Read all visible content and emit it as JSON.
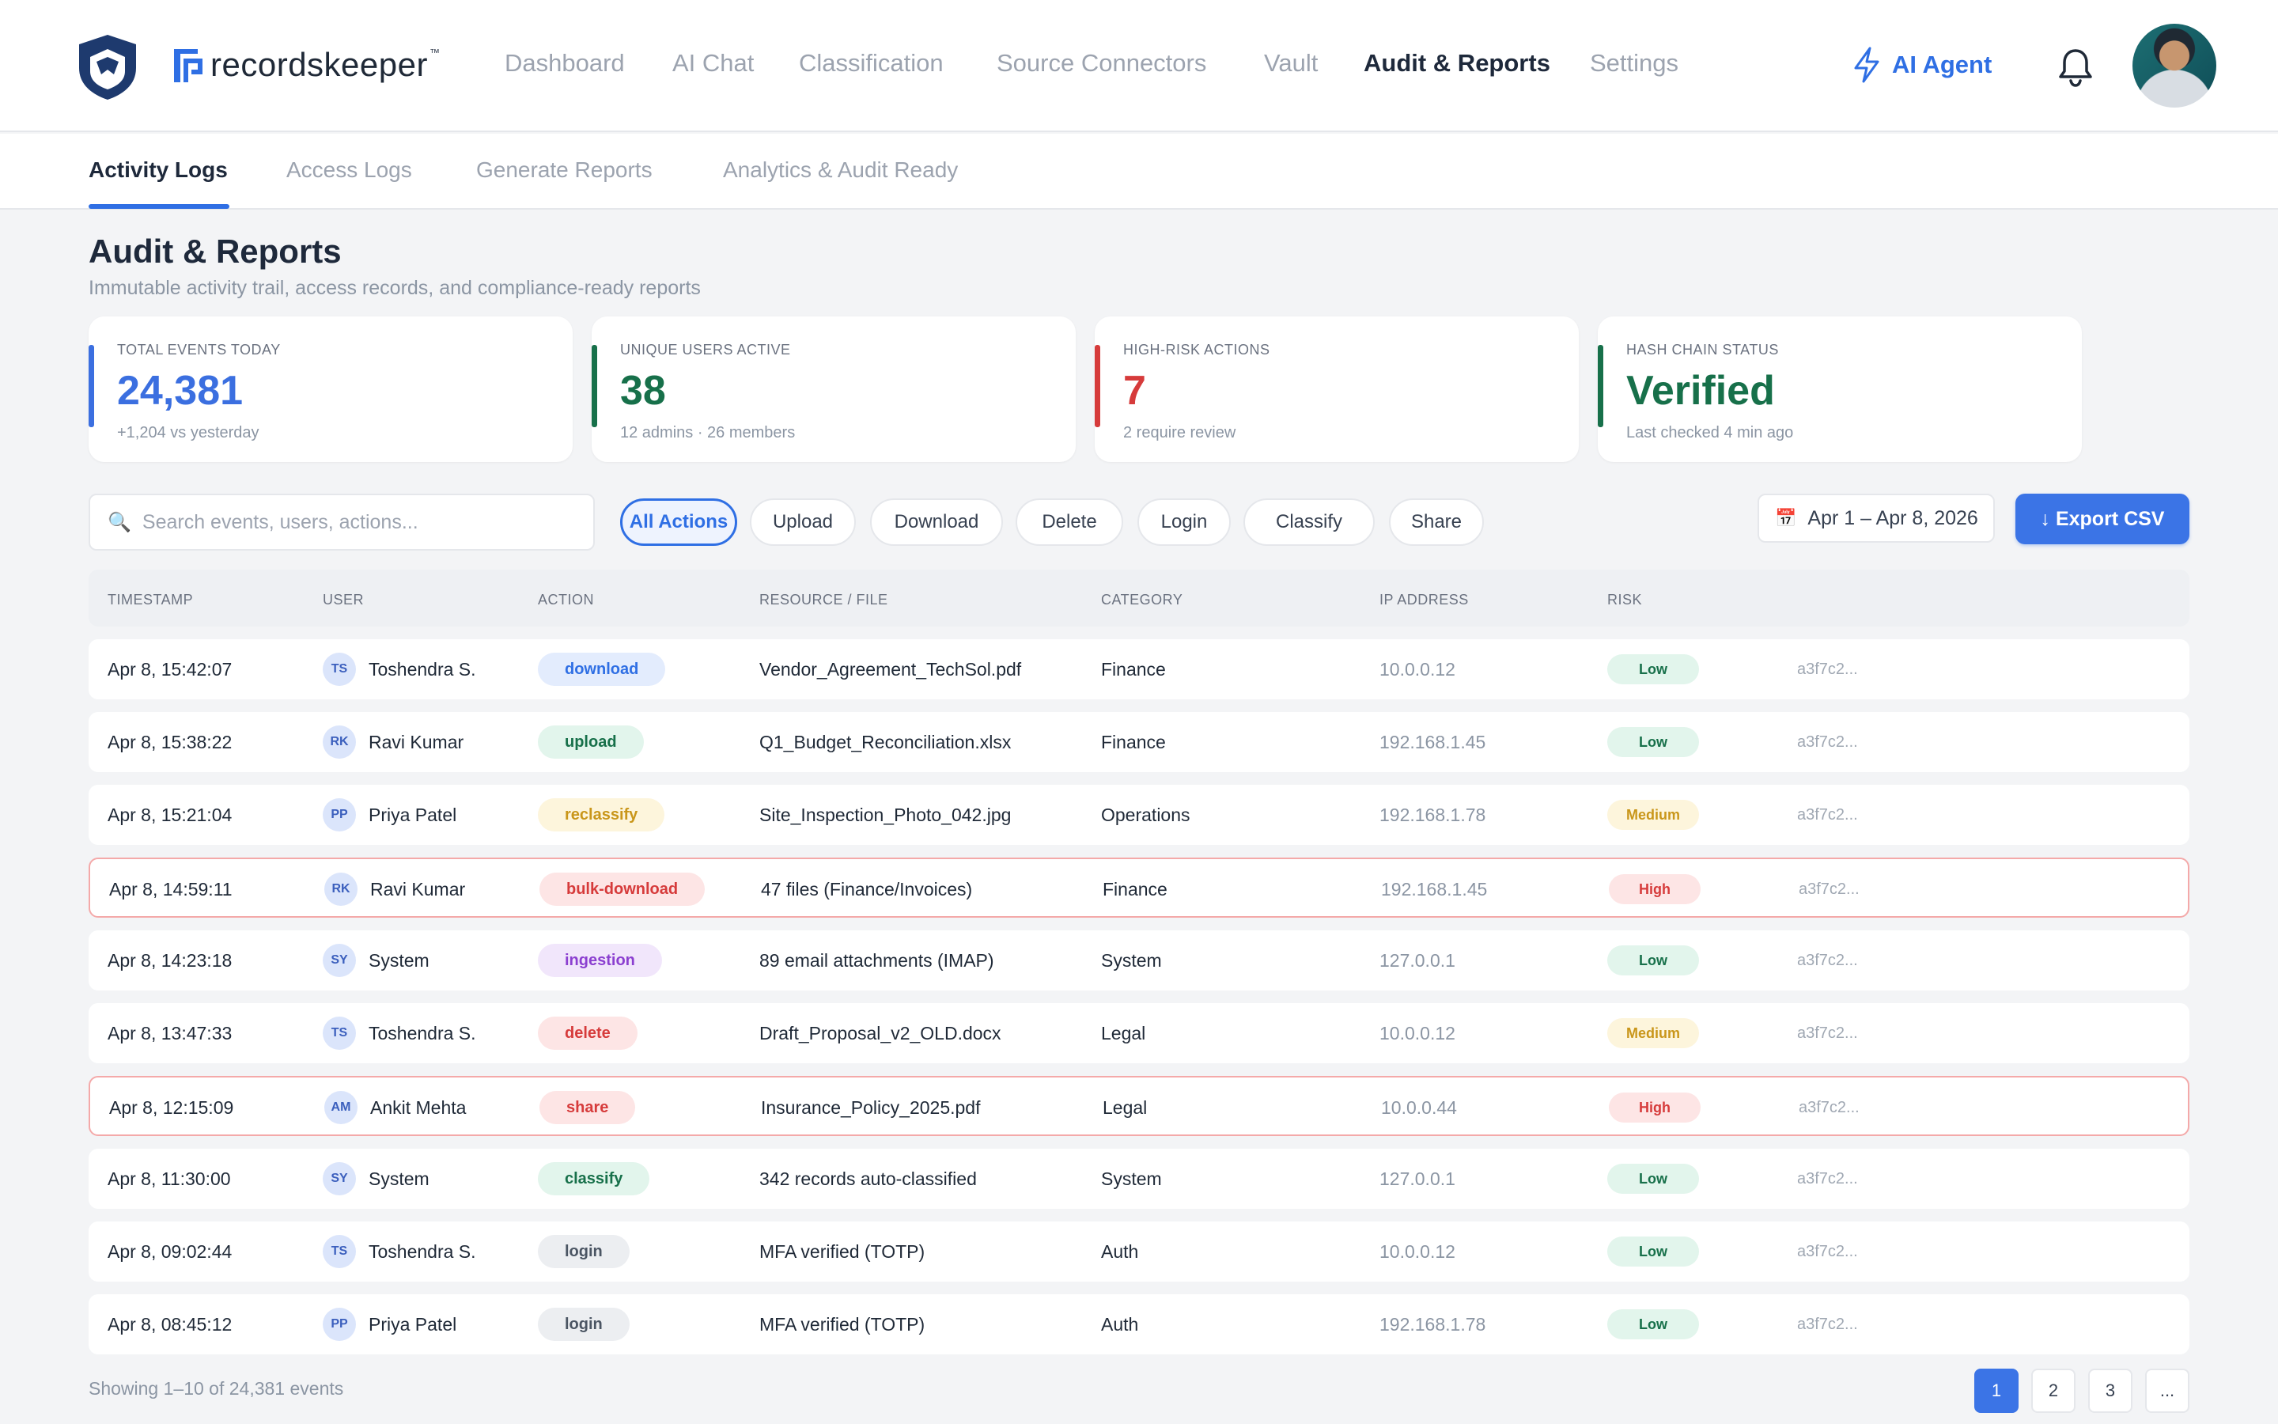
{
  "brand": {
    "name": "recordskeeper",
    "tm": "™"
  },
  "nav": {
    "items": [
      {
        "label": "Dashboard",
        "active": false
      },
      {
        "label": "AI Chat",
        "active": false
      },
      {
        "label": "Classification",
        "active": false
      },
      {
        "label": "Source Connectors",
        "active": false
      },
      {
        "label": "Vault",
        "active": false
      },
      {
        "label": "Audit & Reports",
        "active": true
      },
      {
        "label": "Settings",
        "active": false
      }
    ],
    "ai_agent": "AI Agent"
  },
  "subtabs": [
    "Activity Logs",
    "Access Logs",
    "Generate Reports",
    "Analytics & Audit Ready"
  ],
  "page": {
    "title": "Audit & Reports",
    "subtitle": "Immutable activity trail, access records, and compliance-ready reports"
  },
  "stats": [
    {
      "label": "Total Events Today",
      "value": "24,381",
      "note": "+1,204 vs yesterday",
      "color": "#3b6fe0"
    },
    {
      "label": "Unique Users Active",
      "value": "38",
      "note": "12 admins · 26 members",
      "color": "#17704a"
    },
    {
      "label": "High-Risk Actions",
      "value": "7",
      "note": "2 require review",
      "color": "#d63b3b"
    },
    {
      "label": "Hash Chain Status",
      "value": "Verified",
      "note": "Last checked 4 min ago",
      "color": "#17704a"
    }
  ],
  "toolbar": {
    "search_placeholder": "Search events, users, actions...",
    "search_icon": "🔍",
    "filters": [
      "All Actions",
      "Upload",
      "Download",
      "Delete",
      "Login",
      "Classify",
      "Share"
    ],
    "active_filter": "All Actions",
    "date_icon": "📅",
    "date_range": "Apr 1 – Apr 8, 2026",
    "export_label": "↓ Export CSV"
  },
  "table": {
    "columns": [
      "Timestamp",
      "User",
      "Action",
      "Resource / File",
      "Category",
      "IP Address",
      "Risk"
    ],
    "rows": [
      {
        "timestamp": "Apr 8, 15:42:07",
        "initials": "TS",
        "user": "Toshendra S.",
        "action": "download",
        "resource": "Vendor_Agreement_TechSol.pdf",
        "category": "Finance",
        "ip": "10.0.0.12",
        "risk": "Low",
        "hash": "a3f7c2..."
      },
      {
        "timestamp": "Apr 8, 15:38:22",
        "initials": "RK",
        "user": "Ravi Kumar",
        "action": "upload",
        "resource": "Q1_Budget_Reconciliation.xlsx",
        "category": "Finance",
        "ip": "192.168.1.45",
        "risk": "Low",
        "hash": "a3f7c2..."
      },
      {
        "timestamp": "Apr 8, 15:21:04",
        "initials": "PP",
        "user": "Priya Patel",
        "action": "reclassify",
        "resource": "Site_Inspection_Photo_042.jpg",
        "category": "Operations",
        "ip": "192.168.1.78",
        "risk": "Medium",
        "hash": "a3f7c2..."
      },
      {
        "timestamp": "Apr 8, 14:59:11",
        "initials": "RK",
        "user": "Ravi Kumar",
        "action": "bulk-download",
        "resource": "47 files (Finance/Invoices)",
        "category": "Finance",
        "ip": "192.168.1.45",
        "risk": "High",
        "hash": "a3f7c2..."
      },
      {
        "timestamp": "Apr 8, 14:23:18",
        "initials": "SY",
        "user": "System",
        "action": "ingestion",
        "resource": "89 email attachments (IMAP)",
        "category": "System",
        "ip": "127.0.0.1",
        "risk": "Low",
        "hash": "a3f7c2..."
      },
      {
        "timestamp": "Apr 8, 13:47:33",
        "initials": "TS",
        "user": "Toshendra S.",
        "action": "delete",
        "resource": "Draft_Proposal_v2_OLD.docx",
        "category": "Legal",
        "ip": "10.0.0.12",
        "risk": "Medium",
        "hash": "a3f7c2..."
      },
      {
        "timestamp": "Apr 8, 12:15:09",
        "initials": "AM",
        "user": "Ankit Mehta",
        "action": "share",
        "resource": "Insurance_Policy_2025.pdf",
        "category": "Legal",
        "ip": "10.0.0.44",
        "risk": "High",
        "hash": "a3f7c2..."
      },
      {
        "timestamp": "Apr 8, 11:30:00",
        "initials": "SY",
        "user": "System",
        "action": "classify",
        "resource": "342 records auto-classified",
        "category": "System",
        "ip": "127.0.0.1",
        "risk": "Low",
        "hash": "a3f7c2..."
      },
      {
        "timestamp": "Apr 8, 09:02:44",
        "initials": "TS",
        "user": "Toshendra S.",
        "action": "login",
        "resource": "MFA verified (TOTP)",
        "category": "Auth",
        "ip": "10.0.0.12",
        "risk": "Low",
        "hash": "a3f7c2..."
      },
      {
        "timestamp": "Apr 8, 08:45:12",
        "initials": "PP",
        "user": "Priya Patel",
        "action": "login",
        "resource": "MFA verified (TOTP)",
        "category": "Auth",
        "ip": "192.168.1.78",
        "risk": "Low",
        "hash": "a3f7c2..."
      }
    ]
  },
  "action_colors": {
    "download": {
      "bg": "#e3ecfd",
      "fg": "#2f6fe4"
    },
    "upload": {
      "bg": "#e2f5ec",
      "fg": "#17704a"
    },
    "reclassify": {
      "bg": "#fdf5dc",
      "fg": "#c9961a"
    },
    "bulk-download": {
      "bg": "#fde5e5",
      "fg": "#d63b3b"
    },
    "ingestion": {
      "bg": "#f1e6fb",
      "fg": "#8b3fd0"
    },
    "delete": {
      "bg": "#fde5e5",
      "fg": "#d63b3b"
    },
    "share": {
      "bg": "#fde5e5",
      "fg": "#d63b3b"
    },
    "classify": {
      "bg": "#e2f5ec",
      "fg": "#17704a"
    },
    "login": {
      "bg": "#eceef1",
      "fg": "#4b5563"
    }
  },
  "risk_colors": {
    "Low": {
      "bg": "#e2f5ec",
      "fg": "#17704a"
    },
    "Medium": {
      "bg": "#fdf5dc",
      "fg": "#c9961a"
    },
    "High": {
      "bg": "#fde5e5",
      "fg": "#d63b3b"
    }
  },
  "footer": {
    "showing": "Showing 1–10 of 24,381 events",
    "pages": [
      "1",
      "2",
      "3",
      "..."
    ],
    "current_page": "1"
  }
}
